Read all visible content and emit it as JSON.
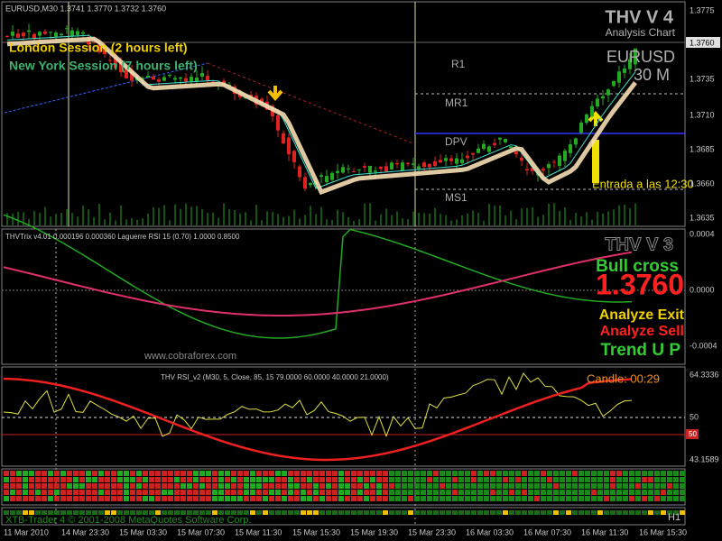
{
  "main": {
    "symbol_line": "EURUSD,M30 1.3741 1.3770 1.3732 1.3760",
    "london": "London Session (2 hours left)",
    "newyork": "New York Session (7 hours left)",
    "brand": "THV V 4",
    "brand_sub": "Analysis Chart",
    "pair": "EURUSD",
    "timeframe": "30 M",
    "levels": [
      "R1",
      "MR1",
      "DPV",
      "MS1"
    ],
    "entry_note": "Entrada a las 12:30",
    "price_axis": [
      "1.3775",
      "1.3735",
      "1.3710",
      "1.3685",
      "1.3660",
      "1.3635"
    ],
    "current_price": "1.3760"
  },
  "trix": {
    "header": "THVTrix v4.01 0.000196 0.000360 Laguerre RSI 15 (0.70) 1.0000 0.8500",
    "brand": "THV V 3",
    "signal": "Bull cross",
    "price": "1.3760",
    "exit": "Analyze Exit",
    "sell": "Analyze Sell",
    "trend": "Trend U P",
    "watermark": "www.cobraforex.com",
    "axis": [
      "0.0004",
      "0.0000",
      "-0.0004"
    ]
  },
  "rsi": {
    "header": "THV RSI_v2 (M30, 5, Close, 85, 15 79.0000 60.0000 40.0000 21.0000)",
    "candle": "Candle: 00:29",
    "axis": [
      "64.3336",
      "50",
      "43.1589"
    ],
    "marker": "50"
  },
  "footer": {
    "copyright": "XTB-Trader 4 © 2001-2008 MetaQuotes Software Corp.",
    "period": "H1"
  },
  "time_axis": [
    "11 Mar 2010",
    "14 Mar 23:30",
    "15 Mar 03:30",
    "15 Mar 07:30",
    "15 Mar 11:30",
    "15 Mar 15:30",
    "15 Mar 19:30",
    "15 Mar 23:30",
    "16 Mar 03:30",
    "16 Mar 07:30",
    "16 Mar 11:30",
    "16 Mar 15:30"
  ]
}
